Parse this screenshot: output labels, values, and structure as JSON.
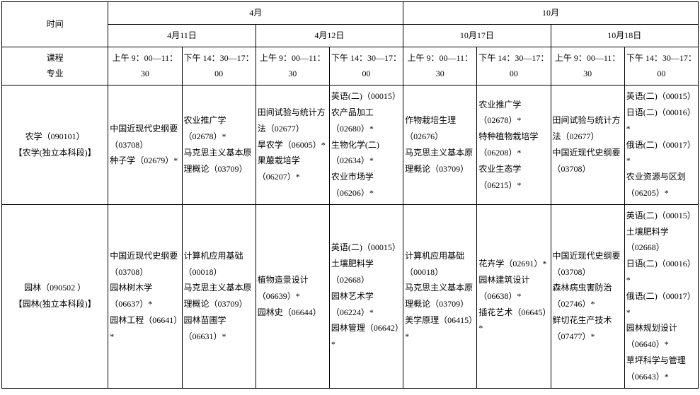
{
  "header": {
    "time_label": "时间",
    "course_label": "课程",
    "major_label": "专业",
    "month_april": "4月",
    "month_october": "10月",
    "date_apr11": "4月11日",
    "date_apr12": "4月12日",
    "date_oct17": "10月17日",
    "date_oct18": "10月18日",
    "slot_am": "上午 9：00—11：30",
    "slot_pm": "下午 14：30—17：00",
    "slot_am_wrap": "上午 9：00—11：30",
    "slot_pm_wrap": "下午 14：30—17：00"
  },
  "rows": {
    "r0": {
      "label": "农学（090101）\n【农学(独立本科段)】",
      "c0": "中国近现代史纲要（03708）\n种子学（02679）*",
      "c1": "农业推广学（02678）*\n马克思主义基本原理概论（03709）",
      "c2": "田间试验与统计方法（02677）\n旱农学（06005）*\n果菔栽培学（06207）*",
      "c3": "英语(二)（00015）\n农产品加工（02680）*\n生物化学(二)（02634）*\n农业市场学（06206）*",
      "c4": "作物栽培生理（02676）\n马克思主义基本原理概论（03709）",
      "c5": "农业推广学（02678）*\n特种植物栽培学（06208）*\n农业生态学（06215）*",
      "c6": "田间试验与统计方法（02677）\n中国近现代史纲要（03708）",
      "c7": "英语(二)（00015）\n日语(二)（00016）*\n俄语(二)（00017）*\n农业资源与区划（06205）*"
    },
    "r1": {
      "label": "园林（090502 ）\n【园林(独立本科段)】",
      "c0": "中国近现代史纲要（03708）\n园林树木学（06637）*\n园林工程（06641）*",
      "c1": "计算机应用基础（00018）\n马克思主义基本原理概论（03709）\n园林苗圃学（06631）*",
      "c2": "植物造景设计（06639）*\n园林史（06644）",
      "c3": "英语(二)（00015）\n土壤肥料学（02668）\n园林艺术学（06224）*\n园林管理（06642）*",
      "c4": "计算机应用基础（00018）\n马克思主义基本原理概论（03709）\n美学原理（06415）*",
      "c5": "花卉学（02691）*\n园林建筑设计（06638）*\n插花艺术（06645）*",
      "c6": "中国近现代史纲要（03708）\n森林病虫害防治（02746）*\n鲜切花生产技术（07477）*",
      "c7": "英语(二)（00015）\n土壤肥料学（02668）\n日语(二)（00016）*\n俄语(二)（00017）*\n园林规划设计（06640）*\n草坪科学与管理（06643）*"
    }
  }
}
